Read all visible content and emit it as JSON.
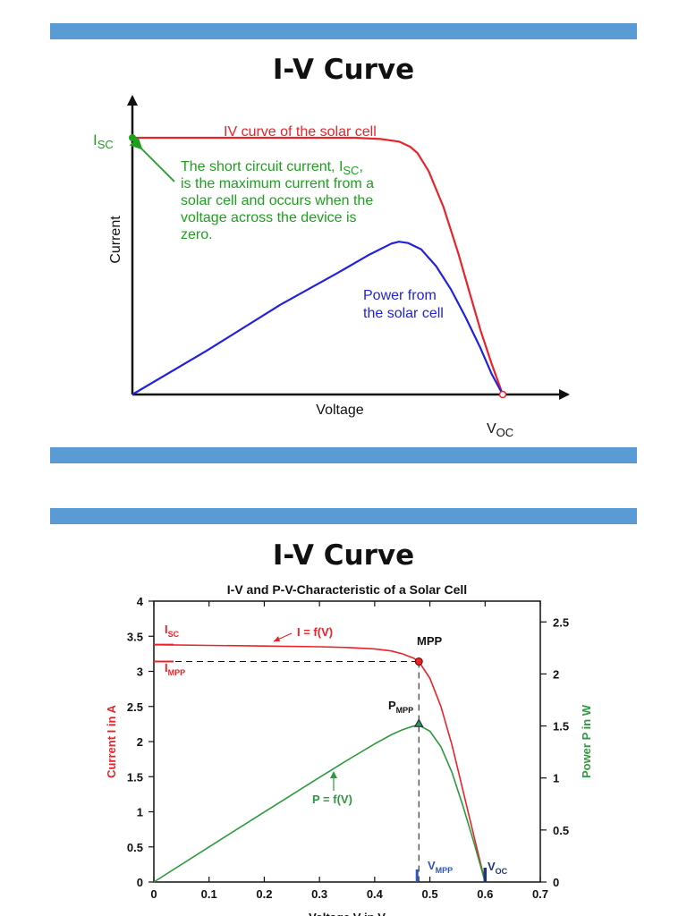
{
  "slides": [
    {
      "title": "I-V Curve"
    },
    {
      "title": "I-V Curve"
    }
  ],
  "colors": {
    "bar": "#5b9bd5",
    "iv": "#e8242a",
    "power": "#2222dd",
    "note": "#1ea01e",
    "pv": "#2b9a3c",
    "marker_blue": "#3355bb"
  },
  "chart_data": [
    {
      "type": "line",
      "title": "",
      "xlabel": "Voltage",
      "ylabel": "Current",
      "x_ticks": [],
      "y_ticks": [],
      "isc_main": "I",
      "isc_sub": "SC",
      "voc_main": "V",
      "voc_sub": "OC",
      "iv_label": "IV curve of the solar cell",
      "note_lines": [
        {
          "main": "The short circuit current, I",
          "sub": "SC",
          "tail": ","
        },
        {
          "main": "is the maximum current from a"
        },
        {
          "main": "solar cell and occurs when the"
        },
        {
          "main": "voltage across the device is"
        },
        {
          "main": "zero."
        }
      ],
      "power_label_lines": [
        "Power from",
        "the solar cell"
      ],
      "series": [
        {
          "name": "IV curve of the solar cell",
          "x": [
            0,
            0.4,
            0.6,
            0.67,
            0.72,
            0.75,
            0.77,
            0.8,
            0.84,
            0.88,
            0.91,
            0.94,
            0.97,
            1.0
          ],
          "y": [
            1.0,
            1.0,
            1.0,
            0.995,
            0.985,
            0.965,
            0.94,
            0.87,
            0.73,
            0.55,
            0.4,
            0.25,
            0.12,
            0.0
          ]
        },
        {
          "name": "Power from the solar cell",
          "x": [
            0,
            0.2,
            0.4,
            0.55,
            0.64,
            0.7,
            0.72,
            0.745,
            0.78,
            0.82,
            0.86,
            0.9,
            0.94,
            0.97,
            1.0
          ],
          "y": [
            0,
            0.17,
            0.35,
            0.47,
            0.545,
            0.588,
            0.595,
            0.59,
            0.565,
            0.5,
            0.41,
            0.3,
            0.18,
            0.08,
            0.0
          ]
        }
      ],
      "xlim": [
        0,
        1.0
      ],
      "ylim": [
        0,
        1.15
      ],
      "grid": false
    },
    {
      "type": "line",
      "title": "I-V and P-V-Characteristic of a Solar Cell",
      "xlabel": "Voltage V in V",
      "ylabel": "Current I in A",
      "y2label": "Power P in W",
      "xlim": [
        0,
        0.7
      ],
      "ylim": [
        0,
        4
      ],
      "y2lim": [
        0,
        2.7
      ],
      "x_ticks": [
        0,
        0.1,
        0.2,
        0.3,
        0.4,
        0.5,
        0.6,
        0.7
      ],
      "x_tick_labels": [
        "0",
        "0.1",
        "0.2",
        "0.3",
        "0.4",
        "0.5",
        "0.6",
        "0.7"
      ],
      "y_ticks": [
        0,
        0.5,
        1,
        1.5,
        2,
        2.5,
        3,
        3.5,
        4
      ],
      "y_tick_labels": [
        "0",
        "0.5",
        "1",
        "1.5",
        "2",
        "2.5",
        "3",
        "3.5",
        "4"
      ],
      "y2_ticks": [
        0,
        0.5,
        1,
        1.5,
        2,
        2.5
      ],
      "y2_tick_labels": [
        "0",
        "0.5",
        "1",
        "1.5",
        "2",
        "2.5"
      ],
      "grid": false,
      "labels": {
        "i_eq": "I = f(V)",
        "p_eq": "P = f(V)",
        "mpp": "MPP",
        "isc_main": "I",
        "isc_sub": "SC",
        "impp_main": "I",
        "impp_sub": "MPP",
        "pmpp_main": "P",
        "pmpp_sub": "MPP",
        "vmpp_main": "V",
        "vmpp_sub": "MPP",
        "voc_main": "V",
        "voc_sub": "OC"
      },
      "isc": 3.38,
      "impp": 3.14,
      "vmpp": 0.48,
      "voc": 0.6,
      "pmpp": 1.52,
      "series": [
        {
          "name": "I = f(V)",
          "x": [
            0,
            0.1,
            0.2,
            0.3,
            0.35,
            0.4,
            0.43,
            0.45,
            0.47,
            0.48,
            0.5,
            0.52,
            0.54,
            0.56,
            0.58,
            0.6
          ],
          "y": [
            3.38,
            3.37,
            3.36,
            3.35,
            3.34,
            3.32,
            3.29,
            3.25,
            3.19,
            3.14,
            2.9,
            2.5,
            1.95,
            1.3,
            0.65,
            0.0
          ]
        },
        {
          "name": "P = f(V)",
          "x": [
            0,
            0.1,
            0.2,
            0.3,
            0.35,
            0.4,
            0.43,
            0.45,
            0.47,
            0.48,
            0.5,
            0.52,
            0.54,
            0.56,
            0.58,
            0.6
          ],
          "y": [
            0,
            0.337,
            0.672,
            1.005,
            1.169,
            1.328,
            1.415,
            1.463,
            1.499,
            1.507,
            1.45,
            1.3,
            1.053,
            0.728,
            0.377,
            0.0
          ]
        }
      ]
    }
  ]
}
